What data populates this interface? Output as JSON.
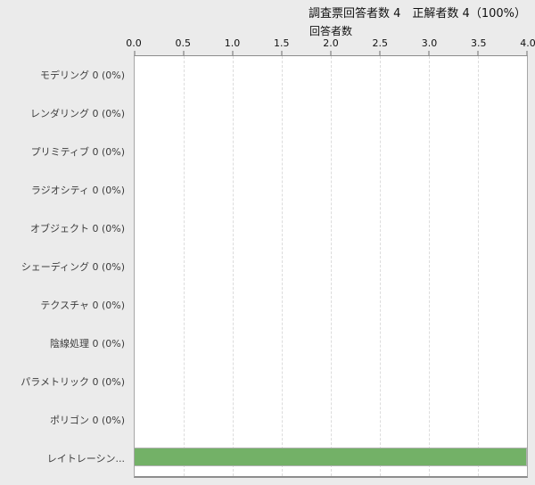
{
  "header": {
    "title": "調査票回答者数 4　正解者数 4（100%）"
  },
  "chart_data": {
    "type": "bar",
    "orientation": "horizontal",
    "title": "回答者数",
    "xlabel": "回答者数",
    "ylabel": "",
    "xlim": [
      0.0,
      4.0
    ],
    "xticks": [
      "0.0",
      "0.5",
      "1.0",
      "1.5",
      "2.0",
      "2.5",
      "3.0",
      "3.5",
      "4.0"
    ],
    "grid": "vertical-dashed",
    "legend": "none",
    "categories": [
      "モデリング 0 (0%)",
      "レンダリング 0 (0%)",
      "プリミティブ 0 (0%)",
      "ラジオシティ 0 (0%)",
      "オブジェクト 0 (0%)",
      "シェーディング 0 (0%)",
      "テクスチャ 0 (0%)",
      "陰線処理 0 (0%)",
      "パラメトリック 0 (0%)",
      "ポリゴン 0 (0%)",
      "レイトレーシン..."
    ],
    "values": [
      0,
      0,
      0,
      0,
      0,
      0,
      0,
      0,
      0,
      0,
      4
    ],
    "colors": {
      "bar": "#73b167",
      "bar_border": "#b2b2b2",
      "plot_bg": "#ffffff",
      "page_bg": "#ebebeb",
      "grid": "#dcdcdc",
      "axis": "#a6a6a6",
      "text": "#111111",
      "label_text": "#3d3d3d"
    }
  }
}
